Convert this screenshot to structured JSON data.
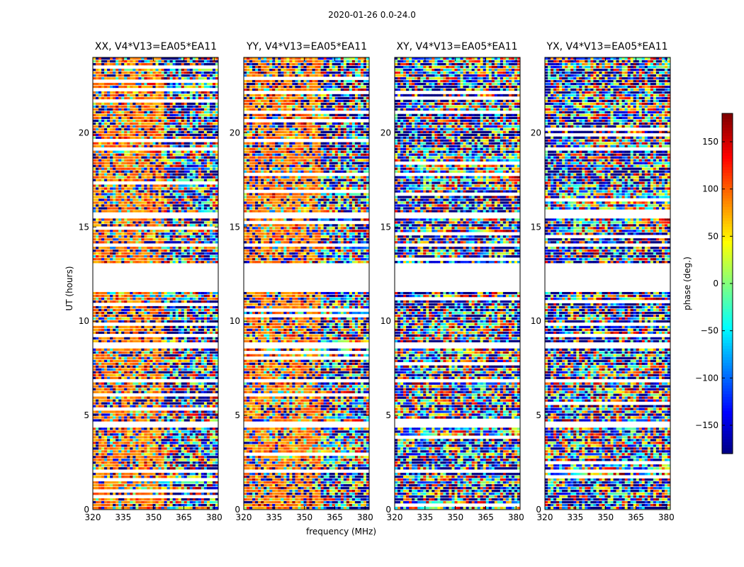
{
  "chart_data": {
    "type": "heatmap",
    "title": "2020-01-26 0.0-24.0",
    "xlabel": "frequency (MHz)",
    "ylabel": "UT (hours)",
    "xlim": [
      320,
      382
    ],
    "ylim": [
      0,
      24
    ],
    "x_ticks": [
      "320",
      "335",
      "350",
      "365",
      "380"
    ],
    "y_ticks": [
      "0",
      "5",
      "10",
      "15",
      "20"
    ],
    "panels": [
      {
        "title": "XX, V4*V13=EA05*EA11",
        "coherent_phase": 90,
        "coherent_fraction": 0.55
      },
      {
        "title": "YY, V4*V13=EA05*EA11",
        "coherent_phase": 90,
        "coherent_fraction": 0.6
      },
      {
        "title": "XY, V4*V13=EA05*EA11",
        "coherent_phase": null,
        "coherent_fraction": 0
      },
      {
        "title": "YX, V4*V13=EA05*EA11",
        "coherent_phase": null,
        "coherent_fraction": 0
      }
    ],
    "flagged_ut_ranges": [
      [
        11.6,
        13.0
      ],
      [
        15.4,
        15.7
      ],
      [
        8.6,
        8.9
      ],
      [
        6.8,
        6.9
      ],
      [
        4.4,
        4.6
      ],
      [
        1.9,
        2.1
      ],
      [
        0.4,
        0.45
      ],
      [
        14.0,
        14.05
      ],
      [
        22.6,
        22.65
      ],
      [
        23.5,
        23.6
      ]
    ],
    "colorbar": {
      "label": "phase (deg.)",
      "range": [
        -180,
        180
      ],
      "ticks": [
        "150",
        "100",
        "50",
        "0",
        "−50",
        "−100",
        "−150"
      ],
      "tick_values": [
        150,
        100,
        50,
        0,
        -50,
        -100,
        -150
      ],
      "colormap": "jet"
    },
    "grid": false
  }
}
